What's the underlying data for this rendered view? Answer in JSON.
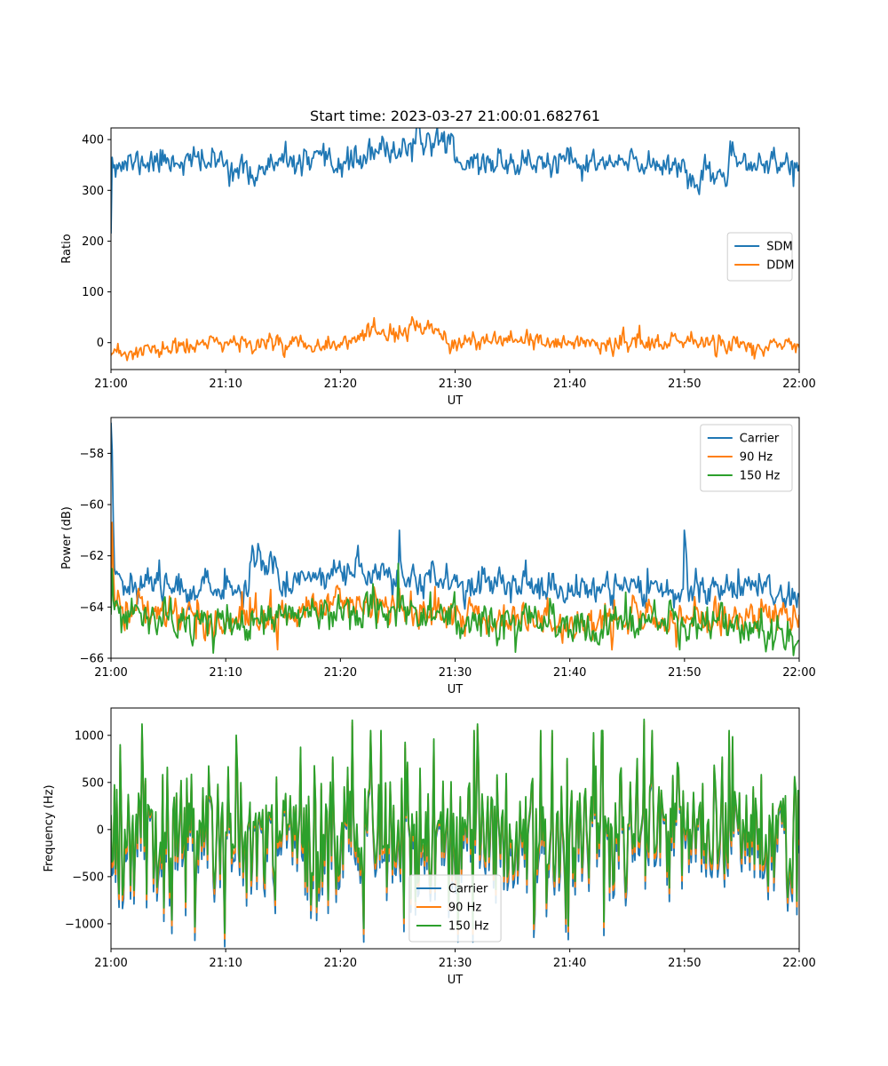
{
  "figure": {
    "title": "Start time: 2023-03-27 21:00:01.682761"
  },
  "chart_data": [
    {
      "type": "line",
      "xlabel": "UT",
      "ylabel": "Ratio",
      "xlim": [
        0,
        60
      ],
      "ylim": [
        -53,
        423
      ],
      "xticks": [
        0,
        10,
        20,
        30,
        40,
        50,
        60
      ],
      "xtick_labels": [
        "21:00",
        "21:10",
        "21:20",
        "21:30",
        "21:40",
        "21:50",
        "22:00"
      ],
      "yticks": [
        0,
        100,
        200,
        300,
        400
      ],
      "ytick_labels": [
        "0",
        "100",
        "200",
        "300",
        "400"
      ],
      "legend_loc": "center right",
      "series": [
        {
          "name": "SDM",
          "color": "#1f77b4",
          "noise": "ratio_sdm",
          "x": [
            0,
            0.1,
            0.3,
            5,
            10,
            11.9,
            15,
            20,
            26.5,
            29.8,
            30,
            35,
            40,
            45,
            50,
            50.6,
            55,
            60
          ],
          "values": [
            215,
            365,
            350,
            360,
            355,
            330,
            355,
            352,
            392,
            405,
            355,
            355,
            352,
            352,
            355,
            308,
            355,
            350
          ]
        },
        {
          "name": "DDM",
          "color": "#ff7f0e",
          "noise": "ratio_ddm",
          "x": [
            0,
            10,
            20,
            26.8,
            30,
            40,
            50,
            60
          ],
          "values": [
            -25,
            0,
            0,
            30,
            0,
            0,
            0,
            -10
          ]
        }
      ]
    },
    {
      "type": "line",
      "xlabel": "UT",
      "ylabel": "Power (dB)",
      "xlim": [
        0,
        60
      ],
      "ylim": [
        -66,
        -56.6
      ],
      "xticks": [
        0,
        10,
        20,
        30,
        40,
        50,
        60
      ],
      "xtick_labels": [
        "21:00",
        "21:10",
        "21:20",
        "21:30",
        "21:40",
        "21:50",
        "22:00"
      ],
      "yticks": [
        -66,
        -64,
        -62,
        -60,
        -58
      ],
      "ytick_labels": [
        "−66",
        "−64",
        "−62",
        "−60",
        "−58"
      ],
      "legend_loc": "upper right",
      "series": [
        {
          "name": "Carrier",
          "color": "#1f77b4",
          "noise": "power_carrier",
          "x": [
            0,
            0.05,
            0.3,
            1,
            5,
            10,
            12,
            12.3,
            15,
            20,
            25,
            25.1,
            25.4,
            30,
            35,
            40,
            45,
            49.9,
            50,
            50.3,
            55,
            60
          ],
          "values": [
            -63.5,
            -56.8,
            -62.5,
            -63.0,
            -63.1,
            -63.3,
            -63.3,
            -61.6,
            -63.0,
            -62.6,
            -62.8,
            -61.0,
            -62.8,
            -63.0,
            -63.1,
            -63.4,
            -63.2,
            -63.3,
            -61.0,
            -63.3,
            -63.2,
            -63.6
          ]
        },
        {
          "name": "90 Hz",
          "color": "#ff7f0e",
          "noise": "power_90",
          "x": [
            0,
            0.1,
            0.3,
            1,
            5,
            10,
            15,
            20,
            25,
            30,
            35,
            40,
            45,
            50,
            55,
            60
          ],
          "values": [
            -64.0,
            -60.7,
            -63.6,
            -64.0,
            -64.2,
            -64.6,
            -64.2,
            -63.8,
            -64.0,
            -64.4,
            -64.3,
            -64.7,
            -64.5,
            -64.5,
            -64.4,
            -64.3
          ]
        },
        {
          "name": "150 Hz",
          "color": "#2ca02c",
          "noise": "power_150",
          "x": [
            0,
            0.1,
            0.3,
            1,
            5,
            10,
            15,
            20,
            24.9,
            25,
            25.2,
            30,
            35,
            40,
            45,
            50,
            55,
            60
          ],
          "values": [
            -64.3,
            -62.5,
            -64.1,
            -64.4,
            -64.5,
            -64.8,
            -64.4,
            -64.0,
            -64.0,
            -62.3,
            -64.0,
            -64.5,
            -64.6,
            -64.9,
            -64.6,
            -64.7,
            -64.7,
            -65.3
          ]
        }
      ]
    },
    {
      "type": "line",
      "xlabel": "UT",
      "ylabel": "Frequency (Hz)",
      "xlim": [
        0,
        60
      ],
      "ylim": [
        -1265,
        1290
      ],
      "xticks": [
        0,
        10,
        20,
        30,
        40,
        50,
        60
      ],
      "xtick_labels": [
        "21:00",
        "21:10",
        "21:20",
        "21:30",
        "21:40",
        "21:50",
        "22:00"
      ],
      "yticks": [
        -1000,
        -500,
        0,
        500,
        1000
      ],
      "ytick_labels": [
        "−1000",
        "−500",
        "0",
        "500",
        "1000"
      ],
      "legend_loc": "lower center",
      "series": [
        {
          "name": "Carrier",
          "color": "#1f77b4",
          "offset": -60,
          "noise": "freq"
        },
        {
          "name": "90 Hz",
          "color": "#ff7f0e",
          "offset": -25,
          "noise": "freq"
        },
        {
          "name": "150 Hz",
          "color": "#2ca02c",
          "offset": 0,
          "noise": "freq",
          "x": [
            0,
            2.7,
            9.9,
            15,
            21,
            26,
            32,
            36.9,
            46.5,
            50,
            60
          ],
          "values": [
            0,
            1120,
            -1100,
            0,
            1160,
            0,
            1120,
            -1000,
            1170,
            0,
            0
          ]
        }
      ]
    }
  ]
}
